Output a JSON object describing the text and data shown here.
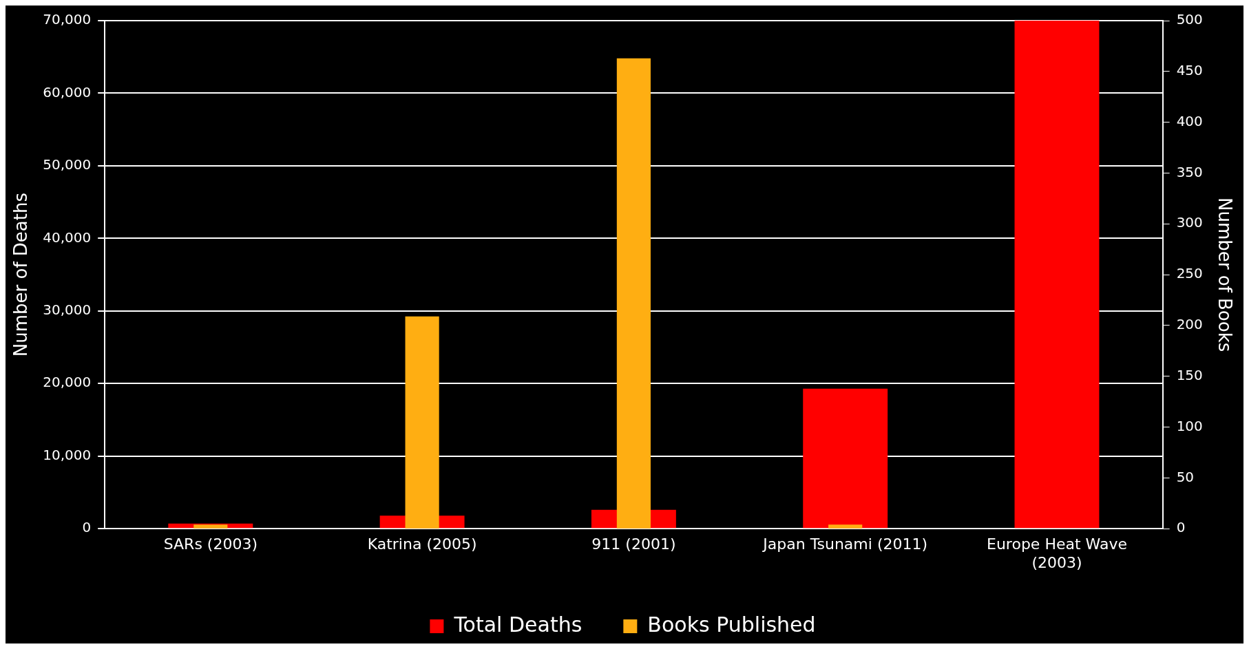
{
  "chart_data": {
    "type": "bar",
    "xlabel": null,
    "ylabel": "Number of Deaths",
    "y2label": "Number of Books",
    "categories": [
      "SARs (2003)",
      "Katrina (2005)",
      "911 (2001)",
      "Japan Tsunami (2011)",
      "Europe Heat Wave (2003)"
    ],
    "series": [
      {
        "name": "Total Deaths",
        "color": "#ff0000",
        "values": [
          700,
          1800,
          2600,
          19300,
          70000
        ]
      },
      {
        "name": "Books Published",
        "color": "#ffae12",
        "axis": "y2",
        "values": [
          4,
          209,
          463,
          4,
          0
        ]
      }
    ],
    "ylim": [
      0,
      70000
    ],
    "yticks": [
      {
        "value": 0,
        "label": "0"
      },
      {
        "value": 10000,
        "label": "10,000"
      },
      {
        "value": 20000,
        "label": "20,000"
      },
      {
        "value": 30000,
        "label": "30,000"
      },
      {
        "value": 40000,
        "label": "40,000"
      },
      {
        "value": 50000,
        "label": "50,000"
      },
      {
        "value": 60000,
        "label": "60,000"
      },
      {
        "value": 70000,
        "label": "70,000"
      }
    ],
    "y2lim": [
      0,
      500
    ],
    "y2ticks": [
      0,
      50,
      100,
      150,
      200,
      250,
      300,
      350,
      400,
      450,
      500
    ],
    "grid": "y",
    "legend": "bottom"
  }
}
